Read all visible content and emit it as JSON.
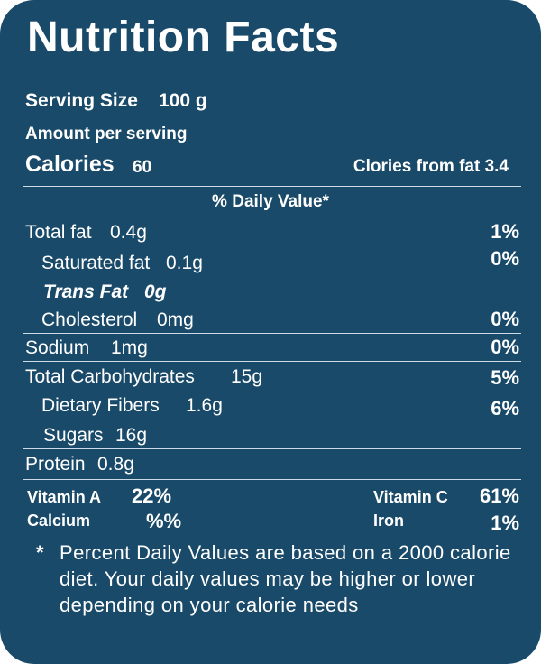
{
  "title": "Nutrition Facts",
  "serving_size_label": "Serving Size",
  "serving_size_value": "100 g",
  "amount_per_serving": "Amount per serving",
  "calories_label": "Calories",
  "calories_value": "60",
  "calories_from_fat": "Clories from fat 3.4",
  "daily_value_header": "% Daily Value*",
  "nutrients": {
    "total_fat": {
      "label": "Total fat",
      "amount": "0.4g",
      "dv": "1%"
    },
    "saturated_fat": {
      "label": "Saturated fat",
      "amount": "0.1g",
      "dv": "0%"
    },
    "trans_fat": {
      "label": "Trans Fat",
      "amount": "0g"
    },
    "cholesterol": {
      "label": "Cholesterol",
      "amount": "0mg",
      "dv": "0%"
    },
    "sodium": {
      "label": "Sodium",
      "amount": "1mg",
      "dv": "0%"
    },
    "total_carbs": {
      "label": "Total Carbohydrates",
      "amount": "15g",
      "dv": "5%"
    },
    "dietary_fibers": {
      "label": "Dietary Fibers",
      "amount": "1.6g",
      "dv": "6%"
    },
    "sugars": {
      "label": "Sugars",
      "amount": "16g"
    },
    "protein": {
      "label": "Protein",
      "amount": "0.8g"
    }
  },
  "vitamins": {
    "vitamin_a": {
      "label": "Vitamin A",
      "value": "22%"
    },
    "vitamin_c": {
      "label": "Vitamin C",
      "value": "61%"
    },
    "calcium": {
      "label": "Calcium",
      "value": "%%"
    },
    "iron": {
      "label": "Iron",
      "value": "1%"
    }
  },
  "footnote_star": "*",
  "footnote": "Percent Daily Values are based on a 2000 calorie diet. Your daily values may be higher or lower depending on your calorie needs",
  "colors": {
    "panel": "#1a4a69",
    "text": "#ffffff",
    "rule": "#cfdbe4"
  }
}
